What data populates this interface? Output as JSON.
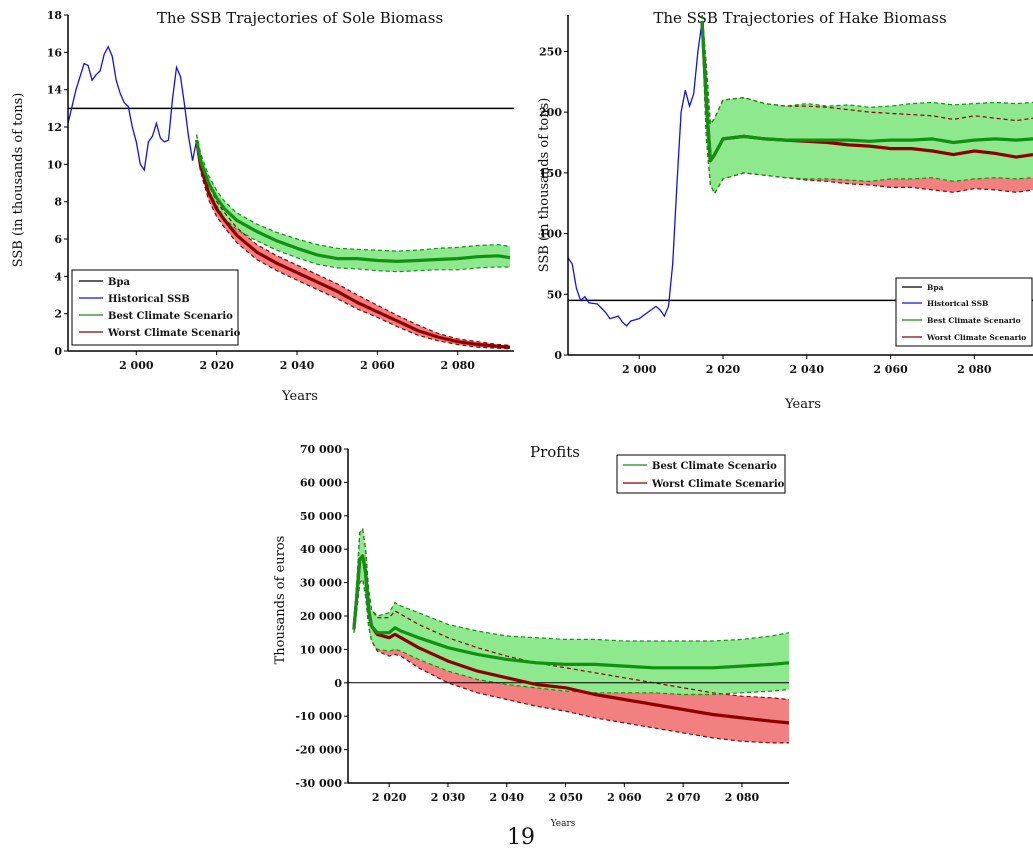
{
  "page_number": "19",
  "colors": {
    "historical": "#1010ee",
    "best": "#119111",
    "worst": "#8e0000",
    "best_band": "#8ee88e",
    "worst_band": "#f28080",
    "bpa": "#000000"
  },
  "chart_data": [
    {
      "id": "sole",
      "type": "line",
      "title": "The SSB Trajectories of Sole Biomass",
      "xlabel": "Years",
      "ylabel": "SSB (in thousands of tons)",
      "xlim": [
        1983,
        2094
      ],
      "ylim": [
        0,
        18
      ],
      "xticks": [
        2000,
        2020,
        2040,
        2060,
        2080
      ],
      "xtick_labels": [
        "2 000",
        "2 020",
        "2 040",
        "2 060",
        "2 080"
      ],
      "yticks": [
        0,
        2,
        4,
        6,
        8,
        10,
        12,
        14,
        16,
        18
      ],
      "ytick_labels": [
        "0",
        "2",
        "4",
        "6",
        "8",
        "10",
        "12",
        "14",
        "16",
        "18"
      ],
      "legend": [
        "Bpa",
        "Historical SSB",
        "Best Climate Scenario",
        "Worst Climate Scenario"
      ],
      "legend_position": "bottom-left",
      "bpa": 13,
      "historical": {
        "x": [
          1983,
          1985,
          1987,
          1988,
          1989,
          1990,
          1991,
          1992,
          1993,
          1994,
          1995,
          1996,
          1997,
          1998,
          1999,
          2000,
          2001,
          2002,
          2003,
          2004,
          2005,
          2006,
          2007,
          2008,
          2009,
          2010,
          2011,
          2012,
          2013,
          2014,
          2015
        ],
        "y": [
          12.2,
          14,
          15.4,
          15.3,
          14.5,
          14.8,
          15.0,
          15.9,
          16.3,
          15.8,
          14.5,
          13.8,
          13.3,
          13.1,
          12.0,
          11.2,
          10.0,
          9.7,
          11.2,
          11.5,
          12.2,
          11.4,
          11.2,
          11.3,
          13.5,
          15.2,
          14.7,
          13.2,
          11.5,
          10.2,
          11.3
        ]
      },
      "x": [
        2015,
        2016,
        2018,
        2020,
        2022,
        2025,
        2030,
        2035,
        2040,
        2045,
        2050,
        2055,
        2060,
        2065,
        2070,
        2075,
        2080,
        2085,
        2090,
        2093
      ],
      "series": [
        {
          "name": "Best Climate Scenario",
          "values": [
            11.3,
            10.2,
            9.0,
            8.2,
            7.6,
            7.0,
            6.4,
            5.9,
            5.5,
            5.15,
            4.95,
            4.95,
            4.85,
            4.8,
            4.85,
            4.9,
            4.95,
            5.05,
            5.1,
            5.0
          ],
          "lower": [
            11.0,
            9.8,
            8.6,
            7.8,
            7.1,
            6.5,
            5.9,
            5.4,
            5.0,
            4.65,
            4.45,
            4.4,
            4.3,
            4.25,
            4.3,
            4.35,
            4.35,
            4.45,
            4.5,
            4.5
          ],
          "upper": [
            11.6,
            10.6,
            9.4,
            8.6,
            8.0,
            7.4,
            6.8,
            6.35,
            6.0,
            5.7,
            5.5,
            5.45,
            5.4,
            5.35,
            5.4,
            5.5,
            5.55,
            5.65,
            5.7,
            5.6
          ]
        },
        {
          "name": "Worst Climate Scenario",
          "values": [
            11.3,
            9.9,
            8.5,
            7.6,
            7.0,
            6.2,
            5.3,
            4.7,
            4.2,
            3.7,
            3.2,
            2.6,
            2.1,
            1.6,
            1.1,
            0.75,
            0.5,
            0.35,
            0.25,
            0.2
          ],
          "lower": [
            11.0,
            9.6,
            8.1,
            7.2,
            6.6,
            5.8,
            4.9,
            4.3,
            3.8,
            3.3,
            2.8,
            2.25,
            1.8,
            1.3,
            0.85,
            0.55,
            0.35,
            0.2,
            0.15,
            0.12
          ],
          "upper": [
            11.6,
            10.2,
            8.9,
            8.0,
            7.4,
            6.6,
            5.7,
            5.1,
            4.6,
            4.1,
            3.6,
            3.0,
            2.45,
            1.9,
            1.4,
            0.95,
            0.65,
            0.5,
            0.35,
            0.3
          ]
        }
      ]
    },
    {
      "id": "hake",
      "type": "line",
      "title": "The SSB Trajectories of Hake Biomass",
      "xlabel": "Years",
      "ylabel": "SSB (in thousands of tons)",
      "xlim": [
        1983,
        2094
      ],
      "ylim": [
        0,
        280
      ],
      "xticks": [
        2000,
        2020,
        2040,
        2060,
        2080
      ],
      "xtick_labels": [
        "2 000",
        "2 020",
        "2 040",
        "2 060",
        "2 080"
      ],
      "yticks": [
        0,
        50,
        100,
        150,
        200,
        250
      ],
      "ytick_labels": [
        "0",
        "50",
        "100",
        "150",
        "200",
        "250"
      ],
      "legend": [
        "Bpa",
        "Historical SSB",
        "Best Climate Scenario",
        "Worst Climate Scenario"
      ],
      "legend_position": "bottom-right",
      "bpa": 45,
      "historical": {
        "x": [
          1983,
          1984,
          1985,
          1986,
          1987,
          1988,
          1990,
          1992,
          1993,
          1995,
          1996,
          1997,
          1998,
          2000,
          2002,
          2004,
          2005,
          2006,
          2007,
          2008,
          2009,
          2010,
          2011,
          2012,
          2013,
          2014,
          2015
        ],
        "y": [
          80,
          75,
          55,
          45,
          48,
          43,
          42,
          35,
          30,
          32,
          27,
          24,
          28,
          30,
          35,
          40,
          37,
          32,
          40,
          75,
          140,
          200,
          218,
          205,
          215,
          250,
          275
        ]
      },
      "x": [
        2015,
        2016,
        2017,
        2018,
        2020,
        2025,
        2030,
        2035,
        2040,
        2045,
        2050,
        2055,
        2060,
        2065,
        2070,
        2075,
        2080,
        2085,
        2090,
        2094
      ],
      "series": [
        {
          "name": "Best Climate Scenario",
          "values": [
            275,
            210,
            160,
            165,
            178,
            180,
            178,
            177,
            177,
            177,
            177,
            176,
            177,
            177,
            178,
            175,
            177,
            178,
            177,
            178
          ],
          "lower": [
            270,
            180,
            140,
            133,
            145,
            150,
            148,
            146,
            145,
            145,
            144,
            143,
            145,
            145,
            146,
            143,
            145,
            146,
            145,
            146
          ],
          "upper": [
            280,
            240,
            190,
            195,
            210,
            212,
            207,
            205,
            207,
            205,
            206,
            204,
            205,
            207,
            208,
            206,
            207,
            208,
            207,
            208
          ]
        },
        {
          "name": "Worst Climate Scenario",
          "values": [
            275,
            210,
            160,
            165,
            178,
            180,
            178,
            177,
            176,
            175,
            173,
            172,
            170,
            170,
            168,
            165,
            168,
            166,
            163,
            165
          ],
          "lower": [
            270,
            180,
            140,
            133,
            145,
            150,
            148,
            146,
            144,
            143,
            141,
            140,
            138,
            138,
            136,
            134,
            137,
            136,
            134,
            136
          ],
          "upper": [
            280,
            240,
            190,
            195,
            210,
            212,
            207,
            205,
            205,
            204,
            202,
            200,
            199,
            198,
            197,
            194,
            197,
            195,
            193,
            195
          ]
        }
      ]
    },
    {
      "id": "profits",
      "type": "line",
      "title": "Profits",
      "xlabel": "Years",
      "ylabel": "Thousands of euros",
      "xlim": [
        2013,
        2088
      ],
      "ylim": [
        -30000,
        70000
      ],
      "xticks": [
        2020,
        2030,
        2040,
        2050,
        2060,
        2070,
        2080
      ],
      "xtick_labels": [
        "2 020",
        "2 030",
        "2 040",
        "2 050",
        "2 060",
        "2 070",
        "2 080"
      ],
      "yticks": [
        -30000,
        -20000,
        -10000,
        0,
        10000,
        20000,
        30000,
        40000,
        50000,
        60000,
        70000
      ],
      "ytick_labels": [
        "-30 000",
        "-20 000",
        "-10 000",
        "0",
        "10 000",
        "20 000",
        "30 000",
        "40 000",
        "50 000",
        "60 000",
        "70 000"
      ],
      "legend": [
        "Best Climate Scenario",
        "Worst Climate Scenario"
      ],
      "legend_position": "top-right",
      "zero_line": 0,
      "x": [
        2014,
        2014.5,
        2015,
        2015.5,
        2016,
        2016.5,
        2017,
        2018,
        2020,
        2021,
        2022,
        2025,
        2030,
        2035,
        2040,
        2045,
        2050,
        2055,
        2060,
        2065,
        2070,
        2075,
        2080,
        2085,
        2088
      ],
      "series": [
        {
          "name": "Best Climate Scenario",
          "values": [
            16000,
            26000,
            37000,
            38000,
            33000,
            22000,
            17000,
            15000,
            15000,
            16500,
            15500,
            13500,
            10500,
            8500,
            7000,
            6000,
            5500,
            5500,
            5000,
            4500,
            4500,
            4500,
            5000,
            5500,
            6000
          ],
          "lower": [
            15000,
            22000,
            30000,
            31000,
            26000,
            17000,
            12500,
            10000,
            9500,
            10000,
            9500,
            7000,
            3500,
            1000,
            -500,
            -1500,
            -2500,
            -3000,
            -3000,
            -3000,
            -3500,
            -3500,
            -3000,
            -2500,
            -2000
          ],
          "upper": [
            17000,
            30000,
            45000,
            46000,
            40000,
            28000,
            22000,
            20000,
            21000,
            24000,
            23000,
            21000,
            17500,
            15500,
            14000,
            13500,
            13000,
            13000,
            12500,
            12500,
            12500,
            12500,
            13000,
            14000,
            15000
          ]
        },
        {
          "name": "Worst Climate Scenario",
          "values": [
            16000,
            26000,
            37000,
            38000,
            33000,
            22000,
            17000,
            14500,
            13500,
            14500,
            13500,
            10500,
            6500,
            3500,
            1500,
            -500,
            -1500,
            -3500,
            -5000,
            -6500,
            -8000,
            -9500,
            -10500,
            -11500,
            -12000
          ],
          "lower": [
            15000,
            22000,
            30000,
            31000,
            26000,
            17000,
            12500,
            9500,
            8000,
            8500,
            8000,
            4500,
            0,
            -3000,
            -5000,
            -7000,
            -8500,
            -10500,
            -12000,
            -13500,
            -15000,
            -16500,
            -17500,
            -18000,
            -18000
          ],
          "upper": [
            17000,
            30000,
            45000,
            46000,
            40000,
            28000,
            22000,
            19500,
            19500,
            21500,
            20500,
            17500,
            13500,
            10500,
            8000,
            6000,
            4500,
            3000,
            1500,
            0,
            -1500,
            -3000,
            -4000,
            -4500,
            -5000
          ]
        }
      ]
    }
  ]
}
